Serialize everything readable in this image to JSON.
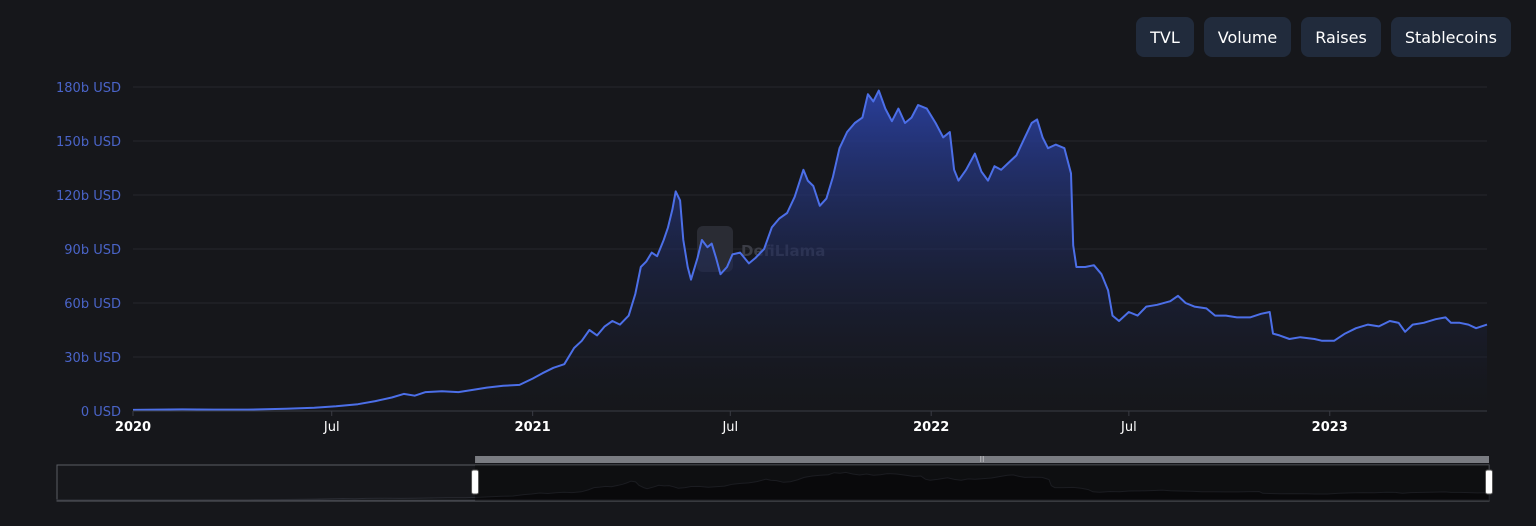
{
  "buttons": [
    {
      "label": "TVL"
    },
    {
      "label": "Volume"
    },
    {
      "label": "Raises"
    },
    {
      "label": "Stablecoins"
    }
  ],
  "watermark": "DefiLlama",
  "colors": {
    "line": "#4c6fe8",
    "area_top": "#2a40a0",
    "button_bg": "#212b3c",
    "y_label": "#4a64c8"
  },
  "chart_data": {
    "type": "area",
    "title": "",
    "xlabel": "",
    "ylabel": "",
    "ylim": [
      0,
      180
    ],
    "y_unit": "b USD",
    "yticks": [
      {
        "value": 0,
        "label": "0 USD"
      },
      {
        "value": 30,
        "label": "30b USD"
      },
      {
        "value": 60,
        "label": "60b USD"
      },
      {
        "value": 90,
        "label": "90b USD"
      },
      {
        "value": 120,
        "label": "120b USD"
      },
      {
        "value": 150,
        "label": "150b USD"
      },
      {
        "value": 180,
        "label": "180b USD"
      }
    ],
    "xlim": [
      "2020-01-01",
      "2023-05-25"
    ],
    "xticks": [
      {
        "date": "2020-01-01",
        "label": "2020",
        "major": true
      },
      {
        "date": "2020-07-01",
        "label": "Jul",
        "major": false
      },
      {
        "date": "2021-01-01",
        "label": "2021",
        "major": true
      },
      {
        "date": "2021-07-01",
        "label": "Jul",
        "major": false
      },
      {
        "date": "2022-01-01",
        "label": "2022",
        "major": true
      },
      {
        "date": "2022-07-01",
        "label": "Jul",
        "major": false
      },
      {
        "date": "2023-01-01",
        "label": "2023",
        "major": true
      }
    ],
    "grid": true,
    "legend": "none",
    "series": [
      {
        "points": [
          [
            "2020-01-01",
            0.6
          ],
          [
            "2020-02-15",
            0.9
          ],
          [
            "2020-03-15",
            0.8
          ],
          [
            "2020-04-15",
            0.8
          ],
          [
            "2020-05-20",
            1.2
          ],
          [
            "2020-06-15",
            1.8
          ],
          [
            "2020-07-05",
            2.6
          ],
          [
            "2020-07-25",
            3.8
          ],
          [
            "2020-08-10",
            5.5
          ],
          [
            "2020-08-25",
            7.5
          ],
          [
            "2020-09-05",
            9.5
          ],
          [
            "2020-09-15",
            8.5
          ],
          [
            "2020-09-25",
            10.5
          ],
          [
            "2020-10-10",
            11
          ],
          [
            "2020-10-25",
            10.5
          ],
          [
            "2020-11-05",
            11.5
          ],
          [
            "2020-11-20",
            13
          ],
          [
            "2020-12-05",
            14
          ],
          [
            "2020-12-20",
            14.5
          ],
          [
            "2021-01-01",
            18
          ],
          [
            "2021-01-10",
            21
          ],
          [
            "2021-01-20",
            24
          ],
          [
            "2021-01-30",
            26
          ],
          [
            "2021-02-08",
            35
          ],
          [
            "2021-02-15",
            39
          ],
          [
            "2021-02-22",
            45
          ],
          [
            "2021-03-01",
            42
          ],
          [
            "2021-03-08",
            47
          ],
          [
            "2021-03-15",
            50
          ],
          [
            "2021-03-22",
            48
          ],
          [
            "2021-03-30",
            53
          ],
          [
            "2021-04-05",
            65
          ],
          [
            "2021-04-10",
            80
          ],
          [
            "2021-04-15",
            83
          ],
          [
            "2021-04-20",
            88
          ],
          [
            "2021-04-25",
            86
          ],
          [
            "2021-05-01",
            95
          ],
          [
            "2021-05-05",
            102
          ],
          [
            "2021-05-09",
            112
          ],
          [
            "2021-05-12",
            122
          ],
          [
            "2021-05-16",
            117
          ],
          [
            "2021-05-19",
            95
          ],
          [
            "2021-05-23",
            80
          ],
          [
            "2021-05-26",
            73
          ],
          [
            "2021-06-01",
            85
          ],
          [
            "2021-06-05",
            95
          ],
          [
            "2021-06-10",
            91
          ],
          [
            "2021-06-14",
            93
          ],
          [
            "2021-06-18",
            85
          ],
          [
            "2021-06-22",
            76
          ],
          [
            "2021-06-28",
            80
          ],
          [
            "2021-07-03",
            87
          ],
          [
            "2021-07-10",
            88
          ],
          [
            "2021-07-18",
            82
          ],
          [
            "2021-07-24",
            85
          ],
          [
            "2021-08-01",
            90
          ],
          [
            "2021-08-08",
            102
          ],
          [
            "2021-08-15",
            107
          ],
          [
            "2021-08-22",
            110
          ],
          [
            "2021-08-29",
            119
          ],
          [
            "2021-09-06",
            134
          ],
          [
            "2021-09-10",
            128
          ],
          [
            "2021-09-15",
            125
          ],
          [
            "2021-09-21",
            114
          ],
          [
            "2021-09-27",
            118
          ],
          [
            "2021-10-03",
            130
          ],
          [
            "2021-10-09",
            146
          ],
          [
            "2021-10-16",
            155
          ],
          [
            "2021-10-23",
            160
          ],
          [
            "2021-10-30",
            163
          ],
          [
            "2021-11-04",
            176
          ],
          [
            "2021-11-09",
            172
          ],
          [
            "2021-11-14",
            178
          ],
          [
            "2021-11-20",
            168
          ],
          [
            "2021-11-26",
            161
          ],
          [
            "2021-12-02",
            168
          ],
          [
            "2021-12-08",
            160
          ],
          [
            "2021-12-14",
            163
          ],
          [
            "2021-12-20",
            170
          ],
          [
            "2021-12-28",
            168
          ],
          [
            "2022-01-05",
            160
          ],
          [
            "2022-01-12",
            152
          ],
          [
            "2022-01-18",
            155
          ],
          [
            "2022-01-22",
            134
          ],
          [
            "2022-01-26",
            128
          ],
          [
            "2022-02-02",
            134
          ],
          [
            "2022-02-10",
            143
          ],
          [
            "2022-02-16",
            133
          ],
          [
            "2022-02-22",
            128
          ],
          [
            "2022-02-28",
            136
          ],
          [
            "2022-03-06",
            134
          ],
          [
            "2022-03-13",
            138
          ],
          [
            "2022-03-20",
            142
          ],
          [
            "2022-03-27",
            151
          ],
          [
            "2022-04-03",
            160
          ],
          [
            "2022-04-08",
            162
          ],
          [
            "2022-04-13",
            152
          ],
          [
            "2022-04-18",
            146
          ],
          [
            "2022-04-25",
            148
          ],
          [
            "2022-05-03",
            146
          ],
          [
            "2022-05-09",
            132
          ],
          [
            "2022-05-11",
            92
          ],
          [
            "2022-05-14",
            80
          ],
          [
            "2022-05-22",
            80
          ],
          [
            "2022-05-30",
            81
          ],
          [
            "2022-06-06",
            76
          ],
          [
            "2022-06-12",
            67
          ],
          [
            "2022-06-16",
            53
          ],
          [
            "2022-06-22",
            50
          ],
          [
            "2022-07-01",
            55
          ],
          [
            "2022-07-09",
            53
          ],
          [
            "2022-07-17",
            58
          ],
          [
            "2022-07-27",
            59
          ],
          [
            "2022-08-08",
            61
          ],
          [
            "2022-08-15",
            64
          ],
          [
            "2022-08-22",
            60
          ],
          [
            "2022-08-30",
            58
          ],
          [
            "2022-09-10",
            57
          ],
          [
            "2022-09-18",
            53
          ],
          [
            "2022-09-28",
            53
          ],
          [
            "2022-10-08",
            52
          ],
          [
            "2022-10-20",
            52
          ],
          [
            "2022-10-30",
            54
          ],
          [
            "2022-11-07",
            55
          ],
          [
            "2022-11-10",
            43
          ],
          [
            "2022-11-16",
            42
          ],
          [
            "2022-11-25",
            40
          ],
          [
            "2022-12-05",
            41
          ],
          [
            "2022-12-18",
            40
          ],
          [
            "2022-12-25",
            39
          ],
          [
            "2023-01-05",
            39
          ],
          [
            "2023-01-15",
            43
          ],
          [
            "2023-01-25",
            46
          ],
          [
            "2023-02-05",
            48
          ],
          [
            "2023-02-15",
            47
          ],
          [
            "2023-02-25",
            50
          ],
          [
            "2023-03-05",
            49
          ],
          [
            "2023-03-11",
            44
          ],
          [
            "2023-03-18",
            48
          ],
          [
            "2023-03-28",
            49
          ],
          [
            "2023-04-08",
            51
          ],
          [
            "2023-04-17",
            52
          ],
          [
            "2023-04-22",
            49
          ],
          [
            "2023-04-30",
            49
          ],
          [
            "2023-05-08",
            48
          ],
          [
            "2023-05-15",
            46
          ],
          [
            "2023-05-25",
            48
          ]
        ]
      }
    ],
    "brush_window": [
      "2020-12-28",
      "2023-05-25"
    ]
  }
}
